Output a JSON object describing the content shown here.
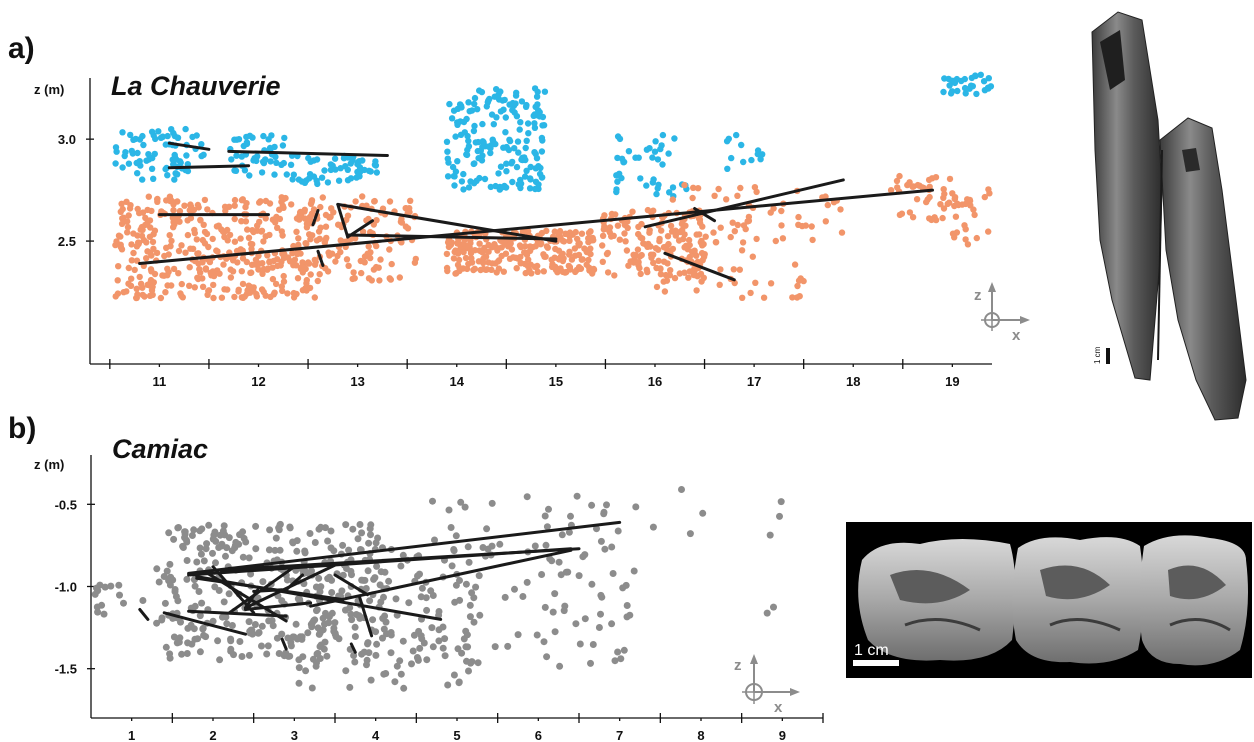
{
  "panels": {
    "a": {
      "letter": "a)",
      "site": "La Chauverie",
      "photo_scale": "1 cm"
    },
    "b": {
      "letter": "b)",
      "site": "Camiac",
      "photo_scale": "1 cm"
    }
  },
  "compass": {
    "z": "z",
    "x": "x"
  },
  "colors": {
    "upper": "#2bb6e6",
    "lower": "#f2956a",
    "camiac": "#8c8c8c",
    "refit": "#1a1a1a"
  },
  "chart_data": [
    {
      "type": "scatter",
      "title": "La Chauverie",
      "xlabel": "",
      "ylabel": "z (m)",
      "xlim": [
        10.3,
        19.4
      ],
      "ylim": [
        2.0,
        3.3
      ],
      "x_ticks": [
        11,
        12,
        13,
        14,
        15,
        16,
        17,
        18,
        19
      ],
      "y_ticks": [
        2.5,
        3.0
      ],
      "y_tick_labels": [
        "2.5",
        "3.0"
      ],
      "series": [
        {
          "color": "#2bb6e6",
          "clusters": [
            {
              "x": [
                10.55,
                11.45
              ],
              "y": [
                2.8,
                3.05
              ],
              "n": 75
            },
            {
              "x": [
                11.7,
                12.3
              ],
              "y": [
                2.82,
                3.02
              ],
              "n": 45
            },
            {
              "x": [
                12.3,
                13.2
              ],
              "y": [
                2.78,
                2.92
              ],
              "n": 55
            },
            {
              "x": [
                13.9,
                14.9
              ],
              "y": [
                2.75,
                3.25
              ],
              "n": 180
            },
            {
              "x": [
                15.6,
                16.4
              ],
              "y": [
                2.72,
                3.04
              ],
              "n": 40
            },
            {
              "x": [
                16.7,
                17.1
              ],
              "y": [
                2.85,
                3.04
              ],
              "n": 12
            },
            {
              "x": [
                18.9,
                19.4
              ],
              "y": [
                3.22,
                3.32
              ],
              "n": 30
            }
          ]
        },
        {
          "color": "#f2956a",
          "clusters": [
            {
              "x": [
                10.55,
                12.6
              ],
              "y": [
                2.22,
                2.72
              ],
              "n": 420
            },
            {
              "x": [
                12.6,
                13.6
              ],
              "y": [
                2.3,
                2.72
              ],
              "n": 110
            },
            {
              "x": [
                13.9,
                15.4
              ],
              "y": [
                2.34,
                2.55
              ],
              "n": 240
            },
            {
              "x": [
                15.45,
                16.5
              ],
              "y": [
                2.3,
                2.66
              ],
              "n": 150
            },
            {
              "x": [
                16.0,
                17.5
              ],
              "y": [
                2.22,
                2.78
              ],
              "n": 80
            },
            {
              "x": [
                17.4,
                17.9
              ],
              "y": [
                2.48,
                2.72
              ],
              "n": 14
            },
            {
              "x": [
                18.3,
                19.2
              ],
              "y": [
                2.6,
                2.82
              ],
              "n": 45
            },
            {
              "x": [
                18.9,
                19.4
              ],
              "y": [
                2.48,
                2.78
              ],
              "n": 22
            }
          ]
        }
      ],
      "refits": [
        [
          [
            11.1,
            2.98
          ],
          [
            11.5,
            2.95
          ]
        ],
        [
          [
            11.7,
            2.94
          ],
          [
            13.3,
            2.92
          ]
        ],
        [
          [
            11.1,
            2.86
          ],
          [
            11.9,
            2.87
          ]
        ],
        [
          [
            10.8,
            2.39
          ],
          [
            18.8,
            2.75
          ]
        ],
        [
          [
            11.0,
            2.63
          ],
          [
            12.1,
            2.63
          ]
        ],
        [
          [
            12.8,
            2.68
          ],
          [
            15.0,
            2.5
          ]
        ],
        [
          [
            12.9,
            2.53
          ],
          [
            15.0,
            2.51
          ]
        ],
        [
          [
            12.8,
            2.68
          ],
          [
            12.9,
            2.52
          ]
        ],
        [
          [
            12.9,
            2.52
          ],
          [
            13.15,
            2.6
          ]
        ],
        [
          [
            15.9,
            2.57
          ],
          [
            17.9,
            2.8
          ]
        ],
        [
          [
            16.1,
            2.44
          ],
          [
            16.8,
            2.31
          ]
        ],
        [
          [
            16.4,
            2.66
          ],
          [
            16.6,
            2.6
          ]
        ],
        [
          [
            12.55,
            2.58
          ],
          [
            12.6,
            2.65
          ]
        ],
        [
          [
            12.6,
            2.45
          ],
          [
            12.65,
            2.38
          ]
        ]
      ]
    },
    {
      "type": "scatter",
      "title": "Camiac",
      "xlabel": "",
      "ylabel": "z (m)",
      "xlim": [
        0.5,
        9.5
      ],
      "ylim": [
        -1.8,
        -0.2
      ],
      "x_ticks": [
        1,
        2,
        3,
        4,
        5,
        6,
        7,
        8,
        9
      ],
      "y_ticks": [
        -0.5,
        -1.0,
        -1.5
      ],
      "y_tick_labels": [
        "-0.5",
        "-1.0",
        "-1.5"
      ],
      "series": [
        {
          "color": "#8c8c8c",
          "clusters": [
            {
              "x": [
                0.55,
                1.2
              ],
              "y": [
                -1.18,
                -0.98
              ],
              "n": 14
            },
            {
              "x": [
                1.3,
                4.2
              ],
              "y": [
                -1.45,
                -0.62
              ],
              "n": 330
            },
            {
              "x": [
                3.0,
                5.2
              ],
              "y": [
                -1.62,
                -0.8
              ],
              "n": 110
            },
            {
              "x": [
                4.5,
                7.2
              ],
              "y": [
                -1.5,
                -0.45
              ],
              "n": 120
            },
            {
              "x": [
                7.4,
                9.2
              ],
              "y": [
                -1.3,
                -0.3
              ],
              "n": 9
            }
          ]
        }
      ],
      "refits": [
        [
          [
            1.7,
            -0.92
          ],
          [
            7.0,
            -0.61
          ]
        ],
        [
          [
            1.7,
            -0.93
          ],
          [
            6.4,
            -0.77
          ]
        ],
        [
          [
            1.8,
            -0.94
          ],
          [
            4.8,
            -1.2
          ]
        ],
        [
          [
            1.8,
            -0.95
          ],
          [
            3.6,
            -1.08
          ]
        ],
        [
          [
            1.9,
            -0.91
          ],
          [
            2.9,
            -1.21
          ]
        ],
        [
          [
            2.0,
            -0.88
          ],
          [
            2.5,
            -1.16
          ]
        ],
        [
          [
            2.1,
            -0.9
          ],
          [
            6.5,
            -0.77
          ]
        ],
        [
          [
            2.2,
            -0.89
          ],
          [
            3.0,
            -0.88
          ]
        ],
        [
          [
            2.2,
            -1.16
          ],
          [
            3.0,
            -0.88
          ]
        ],
        [
          [
            2.4,
            -1.14
          ],
          [
            3.2,
            -1.1
          ]
        ],
        [
          [
            2.4,
            -1.13
          ],
          [
            3.5,
            -0.87
          ]
        ],
        [
          [
            3.2,
            -1.12
          ],
          [
            6.4,
            -0.78
          ]
        ],
        [
          [
            1.4,
            -1.16
          ],
          [
            2.4,
            -1.29
          ]
        ],
        [
          [
            1.7,
            -1.15
          ],
          [
            2.9,
            -1.18
          ]
        ],
        [
          [
            2.4,
            -1.13
          ],
          [
            2.55,
            -1.02
          ]
        ],
        [
          [
            2.5,
            -1.03
          ],
          [
            2.85,
            -1.02
          ]
        ],
        [
          [
            2.9,
            -1.02
          ],
          [
            3.1,
            -0.93
          ]
        ],
        [
          [
            3.5,
            -0.93
          ],
          [
            3.9,
            -1.05
          ]
        ],
        [
          [
            3.8,
            -1.06
          ],
          [
            3.95,
            -1.3
          ]
        ],
        [
          [
            1.1,
            -1.14
          ],
          [
            1.2,
            -1.2
          ]
        ],
        [
          [
            2.85,
            -1.32
          ],
          [
            2.9,
            -1.38
          ]
        ],
        [
          [
            3.7,
            -1.35
          ],
          [
            3.75,
            -1.4
          ]
        ]
      ]
    }
  ]
}
